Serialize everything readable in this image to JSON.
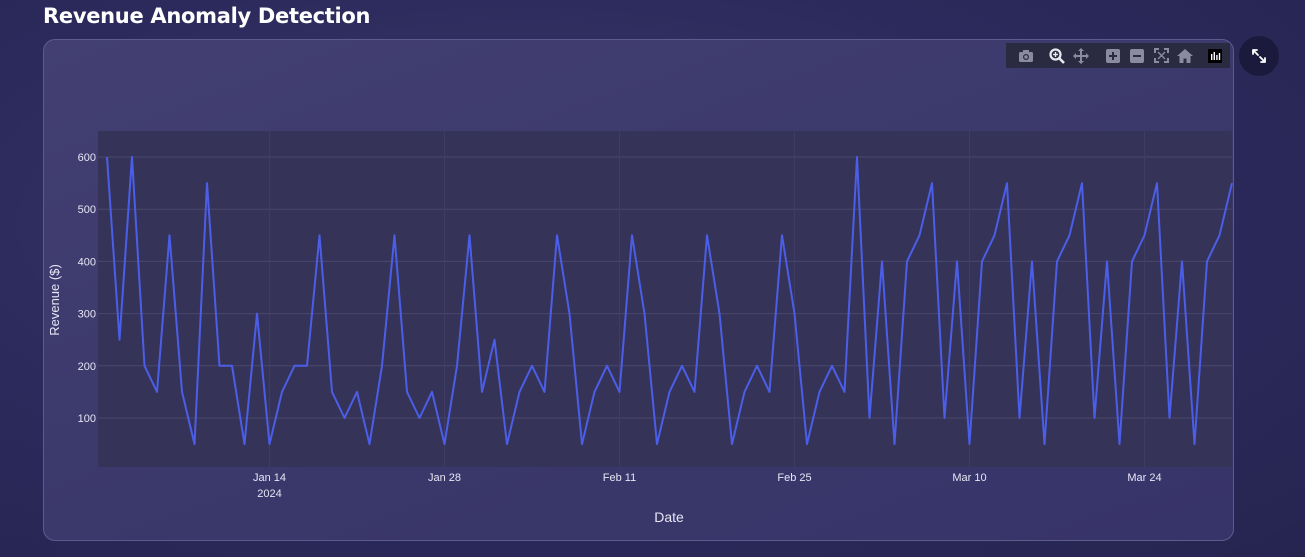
{
  "page": {
    "title": "Revenue Anomaly Detection"
  },
  "modebar": {
    "icons": [
      "camera-icon",
      "zoom-icon",
      "pan-icon",
      "zoom-in-icon",
      "zoom-out-icon",
      "autoscale-icon",
      "reset-axes-icon",
      "plotly-logo-icon"
    ]
  },
  "expand": {
    "icon": "expand-icon"
  },
  "colors": {
    "line": "#4a5ee8",
    "plot_bg": "#363358",
    "accent": "#ffffff"
  },
  "chart_data": {
    "type": "line",
    "title": "",
    "xlabel": "Date",
    "ylabel": "Revenue ($)",
    "x_start": "2024-01-01",
    "x_step_days": 1,
    "x": [
      "2024-01-01",
      "2024-01-02",
      "2024-01-03",
      "2024-01-04",
      "2024-01-05",
      "2024-01-06",
      "2024-01-07",
      "2024-01-08",
      "2024-01-09",
      "2024-01-10",
      "2024-01-11",
      "2024-01-12",
      "2024-01-13",
      "2024-01-14",
      "2024-01-15",
      "2024-01-16",
      "2024-01-17",
      "2024-01-18",
      "2024-01-19",
      "2024-01-20",
      "2024-01-21",
      "2024-01-22",
      "2024-01-23",
      "2024-01-24",
      "2024-01-25",
      "2024-01-26",
      "2024-01-27",
      "2024-01-28",
      "2024-01-29",
      "2024-01-30",
      "2024-01-31",
      "2024-02-01",
      "2024-02-02",
      "2024-02-03",
      "2024-02-04",
      "2024-02-05",
      "2024-02-06",
      "2024-02-07",
      "2024-02-08",
      "2024-02-09",
      "2024-02-10",
      "2024-02-11",
      "2024-02-12",
      "2024-02-13",
      "2024-02-14",
      "2024-02-15",
      "2024-02-16",
      "2024-02-17",
      "2024-02-18",
      "2024-02-19",
      "2024-02-20",
      "2024-02-21",
      "2024-02-22",
      "2024-02-23",
      "2024-02-24",
      "2024-02-25",
      "2024-02-26",
      "2024-02-27",
      "2024-02-28",
      "2024-02-29",
      "2024-03-01",
      "2024-03-02",
      "2024-03-03",
      "2024-03-04",
      "2024-03-05",
      "2024-03-06",
      "2024-03-07",
      "2024-03-08",
      "2024-03-09",
      "2024-03-10",
      "2024-03-11",
      "2024-03-12",
      "2024-03-13",
      "2024-03-14",
      "2024-03-15",
      "2024-03-16",
      "2024-03-17",
      "2024-03-18",
      "2024-03-19",
      "2024-03-20",
      "2024-03-21",
      "2024-03-22",
      "2024-03-23",
      "2024-03-24",
      "2024-03-25",
      "2024-03-26",
      "2024-03-27",
      "2024-03-28",
      "2024-03-29",
      "2024-03-30",
      "2024-03-31"
    ],
    "values": [
      600,
      250,
      600,
      200,
      150,
      450,
      150,
      50,
      550,
      200,
      200,
      50,
      300,
      50,
      150,
      200,
      200,
      450,
      150,
      100,
      150,
      50,
      200,
      450,
      150,
      100,
      150,
      50,
      200,
      450,
      150,
      250,
      50,
      150,
      200,
      150,
      450,
      300,
      50,
      150,
      200,
      150,
      450,
      300,
      50,
      150,
      200,
      150,
      450,
      300,
      50,
      150,
      200,
      150,
      450,
      300,
      50,
      150,
      200,
      150,
      600,
      100,
      400,
      50,
      400,
      450,
      550,
      100,
      400,
      50,
      400,
      450,
      550,
      100,
      400,
      50,
      400,
      450,
      550,
      100,
      400,
      50,
      400,
      450,
      550,
      100,
      400,
      50,
      400,
      450,
      550
    ],
    "ylim": [
      50,
      650
    ],
    "xlim": [
      "2024-01-01",
      "2024-03-31"
    ],
    "yticks": [
      100,
      200,
      300,
      400,
      500,
      600
    ],
    "xticks": [
      {
        "date": "2024-01-14",
        "label": "Jan 14",
        "sublabel": "2024"
      },
      {
        "date": "2024-01-28",
        "label": "Jan 28",
        "sublabel": ""
      },
      {
        "date": "2024-02-11",
        "label": "Feb 11",
        "sublabel": ""
      },
      {
        "date": "2024-02-25",
        "label": "Feb 25",
        "sublabel": ""
      },
      {
        "date": "2024-03-10",
        "label": "Mar 10",
        "sublabel": ""
      },
      {
        "date": "2024-03-24",
        "label": "Mar 24",
        "sublabel": ""
      }
    ],
    "grid": true,
    "legend": "none"
  }
}
